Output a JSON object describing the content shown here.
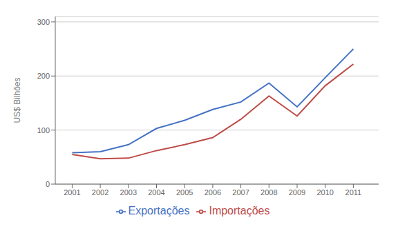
{
  "chart_data": {
    "type": "line",
    "x": [
      2001,
      2002,
      2003,
      2004,
      2005,
      2006,
      2007,
      2008,
      2009,
      2010,
      2011
    ],
    "series": [
      {
        "name": "Exportações",
        "color": "#4472C4",
        "values": [
          58,
          60,
          73,
          103,
          118,
          138,
          152,
          187,
          143,
          197,
          250
        ]
      },
      {
        "name": "Importações",
        "color": "#BE4B48",
        "values": [
          55,
          47,
          48,
          62,
          73,
          86,
          120,
          163,
          126,
          182,
          222
        ]
      }
    ],
    "ylabel": "US$ Bilhões",
    "xlim": [
      2000.4,
      2011.9
    ],
    "xticks": [
      2001,
      2002,
      2003,
      2004,
      2005,
      2006,
      2007,
      2008,
      2009,
      2010,
      2011
    ],
    "ylim": [
      0,
      310
    ],
    "yticks": [
      0,
      100,
      200,
      300
    ],
    "grid": true,
    "legend": "bottom"
  }
}
